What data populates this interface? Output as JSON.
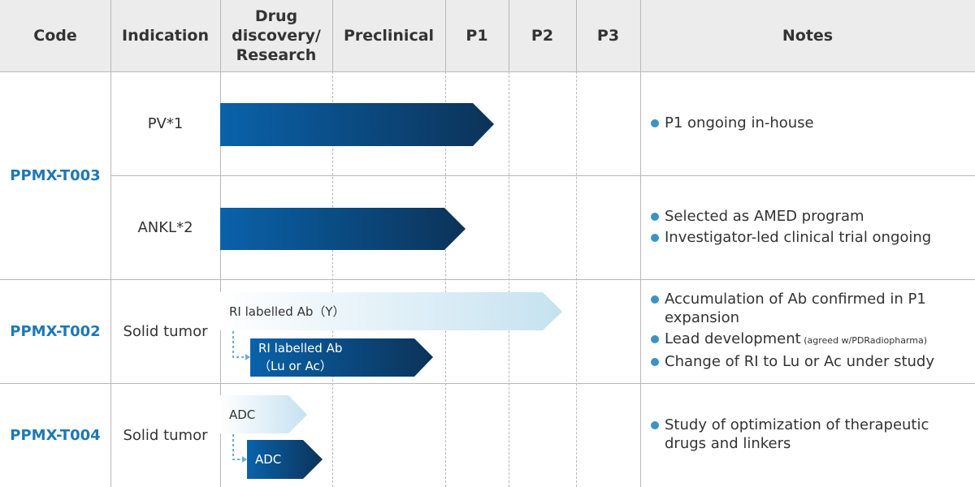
{
  "header": {
    "code": "Code",
    "indication": "Indication",
    "drug_discovery_line1": "Drug",
    "drug_discovery_line2": "discovery/",
    "drug_discovery_line3": "Research",
    "preclinical": "Preclinical",
    "p1": "P1",
    "p2": "P2",
    "p3": "P3",
    "notes": "Notes"
  },
  "rows": {
    "t003": {
      "code": "PPMX-T003",
      "pv": {
        "indication": "PV*1",
        "notes": [
          "P1 ongoing in-house"
        ]
      },
      "ankl": {
        "indication": "ANKL*2",
        "notes": [
          "Selected as AMED program",
          "Investigator-led clinical trial ongoing"
        ]
      }
    },
    "t002": {
      "code": "PPMX-T002",
      "indication": "Solid tumor",
      "bar_main_label": "RI labelled Ab（Y）",
      "bar_sub_label_line1": "RI labelled Ab",
      "bar_sub_label_line2": "（Lu or Ac）",
      "note1": "Accumulation of Ab confirmed in P1 expansion",
      "note2_main": "Lead development",
      "note2_small": " (agreed w/PDRadiopharma)",
      "note3": "Change of RI to Lu or Ac under study"
    },
    "t004": {
      "code": "PPMX-T004",
      "indication": "Solid tumor",
      "bar_main_label": "ADC",
      "bar_sub_label": "ADC",
      "notes": [
        "Study of  optimization of therapeutic drugs and linkers"
      ]
    }
  },
  "colors": {
    "dark_blue_start": "#0a62aa",
    "dark_blue_end": "#0b3358",
    "light_blue_start": "#ffffff",
    "light_blue_end": "#c5e2f0",
    "code_text": "#1e78b4",
    "bullet": "#3b93c4",
    "connector": "#6aaed6"
  }
}
